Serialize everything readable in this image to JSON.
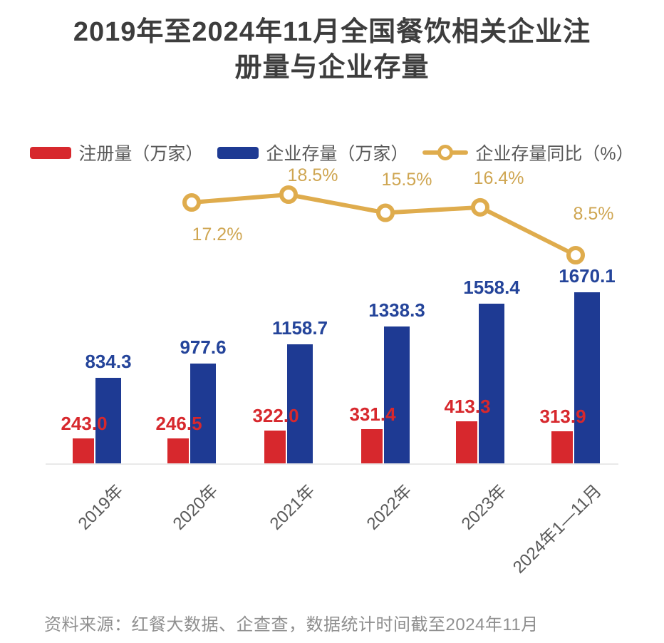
{
  "title": {
    "line1": "2019年至2024年11月全国餐饮相关企业注",
    "line2": "册量与企业存量"
  },
  "legend": [
    {
      "label": "注册量（万家）",
      "type": "bar",
      "color": "#d7282d"
    },
    {
      "label": "企业存量（万家）",
      "type": "bar",
      "color": "#1e3a93"
    },
    {
      "label": "企业存量同比（%）",
      "type": "line",
      "color": "#dfac4d"
    }
  ],
  "source_note": "资料来源：红餐大数据、企查查，数据统计时间截至2024年11月",
  "colors": {
    "registration_red": "#d7282d",
    "stock_blue": "#1e3a93",
    "yoy_gold": "#dfac4d",
    "title_text": "#3d3d3d",
    "axis_text": "#595959",
    "source_text": "#8f8f8f"
  },
  "chart_data": {
    "type": "bar",
    "title": "2019年至2024年11月全国餐饮相关企业注册量与企业存量",
    "categories": [
      "2019年",
      "2020年",
      "2021年",
      "2022年",
      "2023年",
      "2024年1—11月"
    ],
    "series": [
      {
        "name": "注册量（万家）",
        "type": "bar",
        "color": "#d7282d",
        "values": [
          243.0,
          246.5,
          322.0,
          331.4,
          413.3,
          313.9
        ]
      },
      {
        "name": "企业存量（万家）",
        "type": "bar",
        "color": "#1e3a93",
        "values": [
          834.3,
          977.6,
          1158.7,
          1338.3,
          1558.4,
          1670.1
        ]
      },
      {
        "name": "企业存量同比（%）",
        "type": "line",
        "color": "#dfac4d",
        "categories": [
          "2020年",
          "2021年",
          "2022年",
          "2023年",
          "2024年1—11月"
        ],
        "values": [
          17.2,
          18.5,
          15.5,
          16.4,
          8.5
        ],
        "unit": "%"
      }
    ],
    "ylim": [
      0,
      1800
    ],
    "grid": false,
    "legend_position": "top",
    "value_labels_shown": true
  }
}
